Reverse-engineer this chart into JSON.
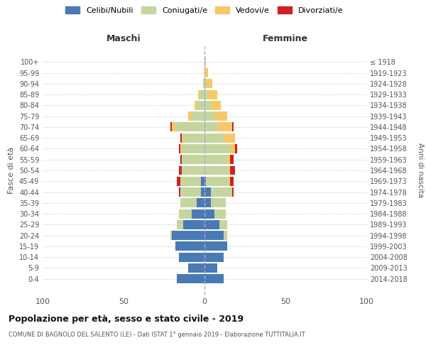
{
  "age_groups": [
    "0-4",
    "5-9",
    "10-14",
    "15-19",
    "20-24",
    "25-29",
    "30-34",
    "35-39",
    "40-44",
    "45-49",
    "50-54",
    "55-59",
    "60-64",
    "65-69",
    "70-74",
    "75-79",
    "80-84",
    "85-89",
    "90-94",
    "95-99",
    "100+"
  ],
  "birth_years": [
    "2014-2018",
    "2009-2013",
    "2004-2008",
    "1999-2003",
    "1994-1998",
    "1989-1993",
    "1984-1988",
    "1979-1983",
    "1974-1978",
    "1969-1973",
    "1964-1968",
    "1959-1963",
    "1954-1958",
    "1949-1953",
    "1944-1948",
    "1939-1943",
    "1934-1938",
    "1929-1933",
    "1924-1928",
    "1919-1923",
    "≤ 1918"
  ],
  "males": {
    "celibi": [
      17,
      10,
      16,
      18,
      20,
      13,
      8,
      5,
      2,
      2,
      0,
      0,
      0,
      0,
      0,
      0,
      0,
      0,
      0,
      0,
      0
    ],
    "coniugati": [
      0,
      0,
      0,
      0,
      1,
      4,
      8,
      10,
      13,
      13,
      14,
      14,
      14,
      13,
      18,
      8,
      5,
      3,
      1,
      0,
      0
    ],
    "vedovi": [
      0,
      0,
      0,
      0,
      0,
      0,
      0,
      0,
      0,
      0,
      0,
      0,
      1,
      1,
      2,
      2,
      1,
      1,
      0,
      0,
      0
    ],
    "divorziati": [
      0,
      0,
      0,
      0,
      0,
      0,
      0,
      0,
      1,
      2,
      2,
      1,
      1,
      1,
      1,
      0,
      0,
      0,
      0,
      0,
      0
    ]
  },
  "females": {
    "nubili": [
      12,
      8,
      12,
      14,
      12,
      9,
      6,
      4,
      4,
      1,
      0,
      0,
      0,
      0,
      0,
      0,
      0,
      0,
      0,
      0,
      0
    ],
    "coniugate": [
      0,
      0,
      0,
      0,
      2,
      5,
      7,
      9,
      13,
      14,
      15,
      14,
      16,
      12,
      8,
      6,
      4,
      2,
      1,
      0,
      0
    ],
    "vedove": [
      0,
      0,
      0,
      0,
      0,
      0,
      0,
      0,
      0,
      1,
      1,
      2,
      3,
      7,
      9,
      8,
      6,
      6,
      4,
      2,
      1
    ],
    "divorziate": [
      0,
      0,
      0,
      0,
      0,
      0,
      0,
      0,
      1,
      2,
      3,
      2,
      1,
      0,
      1,
      0,
      0,
      0,
      0,
      0,
      0
    ]
  },
  "colors": {
    "celibi": "#4a7ab5",
    "coniugati": "#c5d5a0",
    "vedovi": "#f5c96a",
    "divorziati": "#cc2222"
  },
  "title": "Popolazione per età, sesso e stato civile - 2019",
  "subtitle": "COMUNE DI BAGNOLO DEL SALENTO (LE) - Dati ISTAT 1° gennaio 2019 - Elaborazione TUTTITALIA.IT",
  "xlabel_left": "Maschi",
  "xlabel_right": "Femmine",
  "ylabel": "Fasce di età",
  "xlim": 100,
  "background_color": "#ffffff",
  "grid_color": "#cccccc"
}
